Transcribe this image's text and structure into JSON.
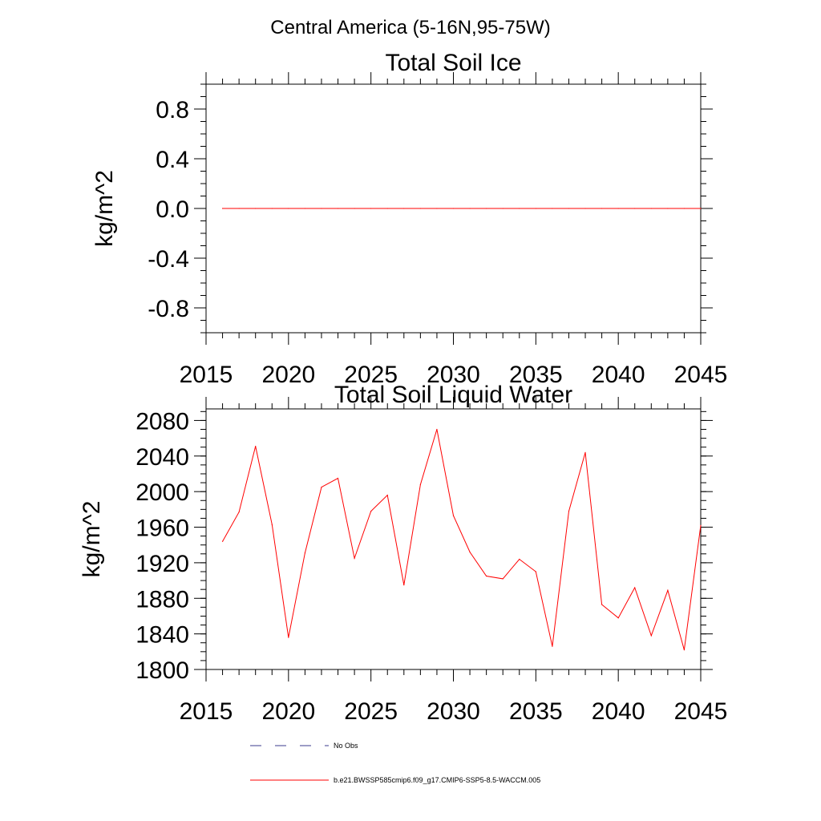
{
  "figure": {
    "title": "Central America (5-16N,95-75W)"
  },
  "chart_data": [
    {
      "type": "line",
      "title": "Total Soil Ice",
      "xlabel": "",
      "ylabel": "kg/m^2",
      "xlim": [
        2015,
        2045
      ],
      "ylim": [
        -1.0,
        1.0
      ],
      "x_ticks": [
        2015,
        2020,
        2025,
        2030,
        2035,
        2040,
        2045
      ],
      "x_tick_labels": [
        "2015",
        "2020",
        "2025",
        "2030",
        "2035",
        "2040",
        "2045"
      ],
      "y_ticks": [
        -0.8,
        -0.4,
        0.0,
        0.4,
        0.8
      ],
      "y_tick_labels": [
        "-0.8",
        "-0.4",
        "0.0",
        "0.4",
        "0.8"
      ],
      "y_minor_step": 0.1,
      "series": [
        {
          "name": "b.e21.BWSSP585cmip6.f09_g17.CMIP6-SSP5-8.5-WACCM.005",
          "color": "#ff0000",
          "x": [
            2016,
            2017,
            2018,
            2019,
            2020,
            2021,
            2022,
            2023,
            2024,
            2025,
            2026,
            2027,
            2028,
            2029,
            2030,
            2031,
            2032,
            2033,
            2034,
            2035,
            2036,
            2037,
            2038,
            2039,
            2040,
            2041,
            2042,
            2043,
            2044,
            2045
          ],
          "values": [
            0,
            0,
            0,
            0,
            0,
            0,
            0,
            0,
            0,
            0,
            0,
            0,
            0,
            0,
            0,
            0,
            0,
            0,
            0,
            0,
            0,
            0,
            0,
            0,
            0,
            0,
            0,
            0,
            0,
            0
          ]
        }
      ]
    },
    {
      "type": "line",
      "title": "Total Soil Liquid Water",
      "xlabel": "",
      "ylabel": "kg/m^2",
      "xlim": [
        2015,
        2045
      ],
      "ylim": [
        1800,
        2093
      ],
      "x_ticks": [
        2015,
        2020,
        2025,
        2030,
        2035,
        2040,
        2045
      ],
      "x_tick_labels": [
        "2015",
        "2020",
        "2025",
        "2030",
        "2035",
        "2040",
        "2045"
      ],
      "y_ticks": [
        1800,
        1840,
        1880,
        1920,
        1960,
        2000,
        2040,
        2080
      ],
      "y_tick_labels": [
        "1800",
        "1840",
        "1880",
        "1920",
        "1960",
        "2000",
        "2040",
        "2080"
      ],
      "y_minor_step": 10,
      "series": [
        {
          "name": "b.e21.BWSSP585cmip6.f09_g17.CMIP6-SSP5-8.5-WACCM.005",
          "color": "#ff0000",
          "x": [
            2016,
            2017,
            2018,
            2019,
            2020,
            2021,
            2022,
            2023,
            2024,
            2025,
            2026,
            2027,
            2028,
            2029,
            2030,
            2031,
            2032,
            2033,
            2034,
            2035,
            2036,
            2037,
            2038,
            2039,
            2040,
            2041,
            2042,
            2043,
            2044,
            2045
          ],
          "values": [
            1944,
            1977,
            2051,
            1963,
            1836,
            1931,
            2005,
            2015,
            1925,
            1978,
            1996,
            1895,
            2008,
            2070,
            1973,
            1932,
            1905,
            1902,
            1924,
            1910,
            1826,
            1978,
            2044,
            1873,
            1858,
            1892,
            1838,
            1889,
            1822,
            1962
          ]
        }
      ]
    }
  ],
  "legend": {
    "items": [
      {
        "label": "No Obs",
        "style": "dashed",
        "color": "#3b3b8c"
      },
      {
        "label": "b.e21.BWSSP585cmip6.f09_g17.CMIP6-SSP5-8.5-WACCM.005",
        "style": "solid",
        "color": "#ff0000"
      }
    ]
  }
}
